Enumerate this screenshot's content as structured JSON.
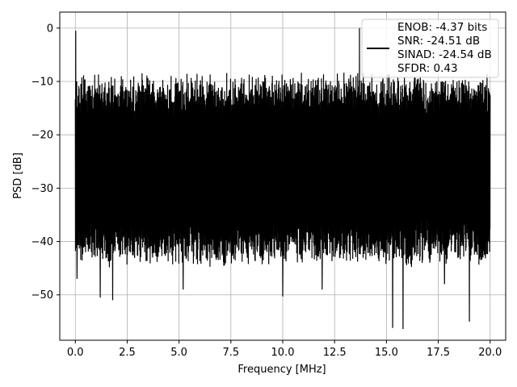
{
  "chart_data": {
    "type": "line",
    "xlabel": "Frequency [MHz]",
    "ylabel": "PSD [dB]",
    "xlim": [
      -0.75,
      20.75
    ],
    "ylim": [
      -58.5,
      3.0
    ],
    "x_ticks": [
      0.0,
      2.5,
      5.0,
      7.5,
      10.0,
      12.5,
      15.0,
      17.5,
      20.0
    ],
    "x_tick_labels": [
      "0.0",
      "2.5",
      "5.0",
      "7.5",
      "10.0",
      "12.5",
      "15.0",
      "17.5",
      "20.0"
    ],
    "y_ticks": [
      0,
      -10,
      -20,
      -30,
      -40,
      -50
    ],
    "y_tick_labels": [
      "0",
      "−10",
      "−20",
      "−30",
      "−40",
      "−50"
    ],
    "grid": true,
    "legend_position": "top-right",
    "legend_lines": [
      "ENOB: -4.37 bits",
      "SNR: -24.51 dB",
      "SINAD: -24.54 dB",
      "SFDR: 0.43"
    ],
    "series_color": "#000000",
    "noise_band": {
      "typical_high": -12,
      "typical_low": -35,
      "x_start": 0.0,
      "x_end": 20.0
    },
    "peaks": [
      {
        "x": 0.02,
        "y": -0.5
      },
      {
        "x": 13.7,
        "y": 0.0
      }
    ],
    "dips": [
      {
        "x": 0.08,
        "y": -47.0
      },
      {
        "x": 1.2,
        "y": -50.5
      },
      {
        "x": 1.8,
        "y": -51.0
      },
      {
        "x": 5.2,
        "y": -49.0
      },
      {
        "x": 10.0,
        "y": -50.3
      },
      {
        "x": 11.9,
        "y": -49.0
      },
      {
        "x": 15.3,
        "y": -56.2
      },
      {
        "x": 15.8,
        "y": -56.4
      },
      {
        "x": 17.8,
        "y": -48.0
      },
      {
        "x": 19.0,
        "y": -55.0
      }
    ]
  }
}
